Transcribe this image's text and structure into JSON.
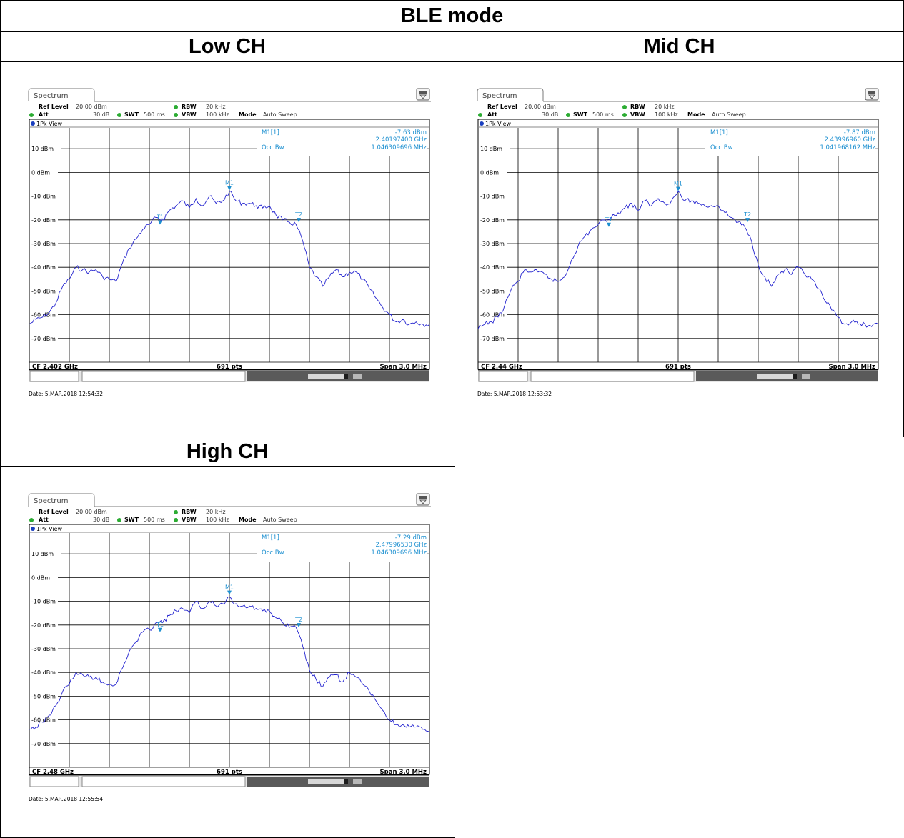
{
  "table": {
    "title": "BLE mode",
    "cells": [
      {
        "label": "Low CH"
      },
      {
        "label": "Mid CH"
      },
      {
        "label": "High CH"
      }
    ]
  },
  "analyzer_common": {
    "tab_label": "Spectrum",
    "ref_level_label": "Ref Level",
    "ref_level": "20.00 dBm",
    "att_label": "Att",
    "att": "30 dB",
    "swt_label": "SWT",
    "swt": "500 ms",
    "rbw_label": "RBW",
    "rbw": "20 kHz",
    "vbw_label": "VBW",
    "vbw": "100 kHz",
    "mode_label": "Mode",
    "mode": "Auto Sweep",
    "view_label": "1Pk View",
    "marker_label": "M1[1]",
    "occ_label": "Occ Bw",
    "points": "691 pts",
    "span": "Span 3.0 MHz",
    "y_ticks": [
      "10 dBm",
      "0 dBm",
      "-10 dBm",
      "-20 dBm",
      "-30 dBm",
      "-40 dBm",
      "-50 dBm",
      "-60 dBm",
      "-70 dBm"
    ],
    "trace_color": "#2323cf",
    "marker_color": "#1b8fd0",
    "status_color": "#2cac33"
  },
  "chart_data": [
    {
      "type": "line",
      "title": "Low CH",
      "cf": "CF 2.402 GHz",
      "marker_level": "-7.63 dBm",
      "marker_freq": "2.40197400 GHz",
      "occ_bw": "1.046309696 MHz",
      "date": "Date: 5.MAR.2018  12:54:32",
      "x_range_offset_mhz": [
        -1.5,
        1.5
      ],
      "y_range_dbm": [
        -80,
        20
      ],
      "markers": [
        {
          "name": "M1",
          "x": 0.0,
          "y": -7.6
        },
        {
          "name": "T1",
          "x": -0.52,
          "y": -22
        },
        {
          "name": "T2",
          "x": 0.52,
          "y": -21
        }
      ],
      "trace": {
        "x": [
          -1.5,
          -1.45,
          -1.4,
          -1.35,
          -1.3,
          -1.25,
          -1.2,
          -1.15,
          -1.1,
          -1.05,
          -1.0,
          -0.95,
          -0.9,
          -0.85,
          -0.8,
          -0.75,
          -0.7,
          -0.65,
          -0.6,
          -0.55,
          -0.5,
          -0.45,
          -0.4,
          -0.35,
          -0.3,
          -0.25,
          -0.2,
          -0.15,
          -0.1,
          -0.05,
          0.0,
          0.05,
          0.1,
          0.15,
          0.2,
          0.25,
          0.3,
          0.35,
          0.4,
          0.45,
          0.5,
          0.55,
          0.6,
          0.65,
          0.7,
          0.75,
          0.8,
          0.85,
          0.9,
          0.95,
          1.0,
          1.05,
          1.1,
          1.15,
          1.2,
          1.25,
          1.3,
          1.35,
          1.4,
          1.45,
          1.5
        ],
        "y": [
          -64,
          -62,
          -61,
          -59,
          -55,
          -48,
          -45,
          -40,
          -41,
          -42,
          -41,
          -44,
          -45,
          -46,
          -38,
          -32,
          -28,
          -24,
          -22,
          -19,
          -20,
          -16,
          -14,
          -12,
          -15,
          -11,
          -14,
          -10,
          -13,
          -12,
          -8,
          -12,
          -13,
          -13,
          -14,
          -15,
          -14,
          -18,
          -20,
          -21,
          -22,
          -29,
          -40,
          -44,
          -48,
          -44,
          -41,
          -44,
          -42,
          -42,
          -45,
          -49,
          -53,
          -57,
          -60,
          -63,
          -62,
          -64,
          -63,
          -64,
          -64
        ]
      }
    },
    {
      "type": "line",
      "title": "Mid CH",
      "cf": "CF 2.44 GHz",
      "marker_level": "-7.87 dBm",
      "marker_freq": "2.43996960 GHz",
      "occ_bw": "1.041968162 MHz",
      "date": "Date: 5.MAR.2018  12:53:32",
      "x_range_offset_mhz": [
        -1.5,
        1.5
      ],
      "y_range_dbm": [
        -80,
        20
      ],
      "markers": [
        {
          "name": "M1",
          "x": 0.0,
          "y": -7.9
        },
        {
          "name": "T1",
          "x": -0.52,
          "y": -23
        },
        {
          "name": "T2",
          "x": 0.52,
          "y": -21
        }
      ],
      "trace": {
        "x": [
          -1.5,
          -1.45,
          -1.4,
          -1.35,
          -1.3,
          -1.25,
          -1.2,
          -1.15,
          -1.1,
          -1.05,
          -1.0,
          -0.95,
          -0.9,
          -0.85,
          -0.8,
          -0.75,
          -0.7,
          -0.65,
          -0.6,
          -0.55,
          -0.5,
          -0.45,
          -0.4,
          -0.35,
          -0.3,
          -0.25,
          -0.2,
          -0.15,
          -0.1,
          -0.05,
          0.0,
          0.05,
          0.1,
          0.15,
          0.2,
          0.25,
          0.3,
          0.35,
          0.4,
          0.45,
          0.5,
          0.55,
          0.6,
          0.65,
          0.7,
          0.75,
          0.8,
          0.85,
          0.9,
          0.95,
          1.0,
          1.05,
          1.1,
          1.15,
          1.2,
          1.25,
          1.3,
          1.35,
          1.4,
          1.45,
          1.5
        ],
        "y": [
          -66,
          -64,
          -63,
          -61,
          -56,
          -49,
          -46,
          -41,
          -42,
          -42,
          -43,
          -45,
          -46,
          -44,
          -37,
          -31,
          -27,
          -24,
          -22,
          -20,
          -19,
          -17,
          -15,
          -13,
          -16,
          -12,
          -14,
          -11,
          -13,
          -12,
          -8,
          -12,
          -12,
          -13,
          -14,
          -14,
          -14,
          -17,
          -19,
          -21,
          -23,
          -29,
          -39,
          -44,
          -48,
          -43,
          -41,
          -43,
          -40,
          -43,
          -45,
          -49,
          -54,
          -58,
          -61,
          -64,
          -63,
          -64,
          -64,
          -65,
          -64
        ]
      }
    },
    {
      "type": "line",
      "title": "High CH",
      "cf": "CF 2.48 GHz",
      "marker_level": "-7.29 dBm",
      "marker_freq": "2.47996530 GHz",
      "occ_bw": "1.046309696 MHz",
      "date": "Date: 5.MAR.2018  12:55:54",
      "x_range_offset_mhz": [
        -1.5,
        1.5
      ],
      "y_range_dbm": [
        -80,
        20
      ],
      "markers": [
        {
          "name": "M1",
          "x": 0.0,
          "y": -7.3
        },
        {
          "name": "T1",
          "x": -0.52,
          "y": -23
        },
        {
          "name": "T2",
          "x": 0.52,
          "y": -21
        }
      ],
      "trace": {
        "x": [
          -1.5,
          -1.45,
          -1.4,
          -1.35,
          -1.3,
          -1.25,
          -1.2,
          -1.15,
          -1.1,
          -1.05,
          -1.0,
          -0.95,
          -0.9,
          -0.85,
          -0.8,
          -0.75,
          -0.7,
          -0.65,
          -0.6,
          -0.55,
          -0.5,
          -0.45,
          -0.4,
          -0.35,
          -0.3,
          -0.25,
          -0.2,
          -0.15,
          -0.1,
          -0.05,
          0.0,
          0.05,
          0.1,
          0.15,
          0.2,
          0.25,
          0.3,
          0.35,
          0.4,
          0.45,
          0.5,
          0.55,
          0.6,
          0.65,
          0.7,
          0.75,
          0.8,
          0.85,
          0.9,
          0.95,
          1.0,
          1.05,
          1.1,
          1.15,
          1.2,
          1.25,
          1.3,
          1.35,
          1.4,
          1.45,
          1.5
        ],
        "y": [
          -64,
          -63,
          -61,
          -58,
          -54,
          -48,
          -45,
          -40,
          -41,
          -42,
          -42,
          -44,
          -45,
          -45,
          -38,
          -31,
          -27,
          -23,
          -22,
          -19,
          -19,
          -16,
          -14,
          -13,
          -15,
          -10,
          -13,
          -10,
          -12,
          -11,
          -8,
          -11,
          -12,
          -12,
          -13,
          -14,
          -14,
          -17,
          -19,
          -21,
          -21,
          -29,
          -39,
          -43,
          -46,
          -42,
          -41,
          -44,
          -40,
          -42,
          -45,
          -48,
          -52,
          -56,
          -60,
          -62,
          -62,
          -63,
          -63,
          -64,
          -65
        ]
      }
    }
  ]
}
